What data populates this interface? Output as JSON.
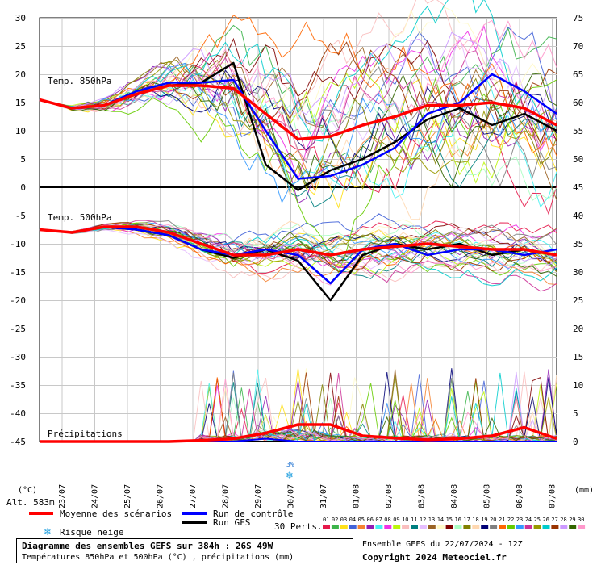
{
  "chart_data": {
    "type": "line",
    "x": [
      "23/07",
      "24/07",
      "25/07",
      "26/07",
      "27/07",
      "28/07",
      "29/07",
      "30/07",
      "31/07",
      "01/08",
      "02/08",
      "03/08",
      "04/08",
      "05/08",
      "06/08",
      "07/08"
    ],
    "left_axis": {
      "unit": "(°C)",
      "ticks": [
        30,
        25,
        20,
        15,
        10,
        5,
        0,
        -5,
        -10,
        -15,
        -20,
        -25,
        -30,
        -35,
        -40,
        -45
      ]
    },
    "right_axis": {
      "unit": "(mm)",
      "ticks": [
        75,
        70,
        65,
        60,
        55,
        50,
        45,
        40,
        35,
        30,
        25,
        20,
        15,
        10,
        5,
        0
      ]
    },
    "panels": {
      "t850": {
        "label": "Temp. 850hPa",
        "mean": [
          15.5,
          14.0,
          14.5,
          16.5,
          18.0,
          18.0,
          17.5,
          13.0,
          8.5,
          9.0,
          11.0,
          12.5,
          14.5,
          14.5,
          15.0,
          14.0,
          11.0
        ],
        "control": [
          15.5,
          14.0,
          14.5,
          17.0,
          18.5,
          18.5,
          19.0,
          10.0,
          1.5,
          2.0,
          4.0,
          7.0,
          13.0,
          15.0,
          20.0,
          17.0,
          13.0
        ],
        "gfs": [
          15.5,
          14.0,
          14.5,
          16.5,
          18.0,
          18.5,
          22.0,
          4.0,
          -0.5,
          3.0,
          5.0,
          8.0,
          12.0,
          14.0,
          11.0,
          13.0,
          10.0
        ]
      },
      "t500": {
        "label": "Temp. 500hPa",
        "mean": [
          -7.5,
          -8.0,
          -7.0,
          -7.0,
          -8.0,
          -10.0,
          -12.0,
          -12.0,
          -11.0,
          -12.0,
          -11.0,
          -10.5,
          -10.0,
          -10.5,
          -11.0,
          -11.0,
          -12.0
        ],
        "control": [
          -7.5,
          -8.0,
          -7.0,
          -7.5,
          -8.5,
          -11.0,
          -12.0,
          -11.0,
          -12.0,
          -17.0,
          -11.0,
          -10.0,
          -12.0,
          -11.0,
          -11.0,
          -12.0,
          -11.0
        ],
        "gfs": [
          -7.5,
          -8.0,
          -7.0,
          -7.5,
          -8.5,
          -11.0,
          -12.5,
          -11.0,
          -13.0,
          -20.0,
          -12.0,
          -10.0,
          -11.0,
          -10.0,
          -12.0,
          -11.0,
          -12.0
        ]
      },
      "precip": {
        "label": "Précipitations",
        "mean": [
          0,
          0,
          0,
          0,
          0,
          0.2,
          0.5,
          1.5,
          3.0,
          3.0,
          1.0,
          0.6,
          0.3,
          0.5,
          1.0,
          2.5,
          0.5
        ],
        "control": [
          0,
          0,
          0,
          0,
          0,
          0,
          0,
          0.5,
          0,
          0,
          0,
          0,
          0,
          0,
          0,
          0,
          0
        ],
        "gfs": [
          0,
          0,
          0,
          0,
          0,
          0,
          0,
          0,
          0,
          0,
          0,
          0,
          0,
          0,
          0,
          0,
          0
        ]
      }
    },
    "snow_marker": {
      "date": "30/07",
      "text": "3%"
    }
  },
  "altitude": "Alt. 583m",
  "legend": {
    "mean_label": "Moyenne des scénarios",
    "mean_color": "#ff0000",
    "control_label": "Run de contrôle",
    "control_color": "#0000ff",
    "gfs_label": "Run GFS",
    "gfs_color": "#000000",
    "snow_label": "Risque neige",
    "perts_label": "30 Perts.",
    "perts_numbers": [
      "01",
      "02",
      "03",
      "04",
      "05",
      "06",
      "07",
      "08",
      "09",
      "10",
      "11",
      "12",
      "13",
      "14",
      "15",
      "16",
      "17",
      "18",
      "19",
      "20",
      "21",
      "22",
      "23",
      "24",
      "25",
      "26",
      "27",
      "28",
      "29",
      "30"
    ],
    "perts_colors": [
      "#e6194b",
      "#3cb44b",
      "#ffe119",
      "#4363d8",
      "#f58231",
      "#911eb4",
      "#46f0f0",
      "#f032e6",
      "#bcf60c",
      "#fabebe",
      "#008080",
      "#e6beff",
      "#9a6324",
      "#fffac8",
      "#800000",
      "#aaffc3",
      "#808000",
      "#ffd8b1",
      "#000075",
      "#808080",
      "#ff6600",
      "#66cc00",
      "#3399ff",
      "#cc3399",
      "#999900",
      "#00cccc",
      "#993300",
      "#cc99ff",
      "#336600",
      "#ff99cc"
    ]
  },
  "footer": {
    "title": "Diagramme des ensembles GEFS sur 384h : 26S 49W",
    "subtitle": "Températures 850hPa et 500hPa (°C) , précipitations (mm)",
    "run": "Ensemble GEFS du 22/07/2024 - 12Z",
    "copyright": "Copyright 2024 Meteociel.fr"
  }
}
